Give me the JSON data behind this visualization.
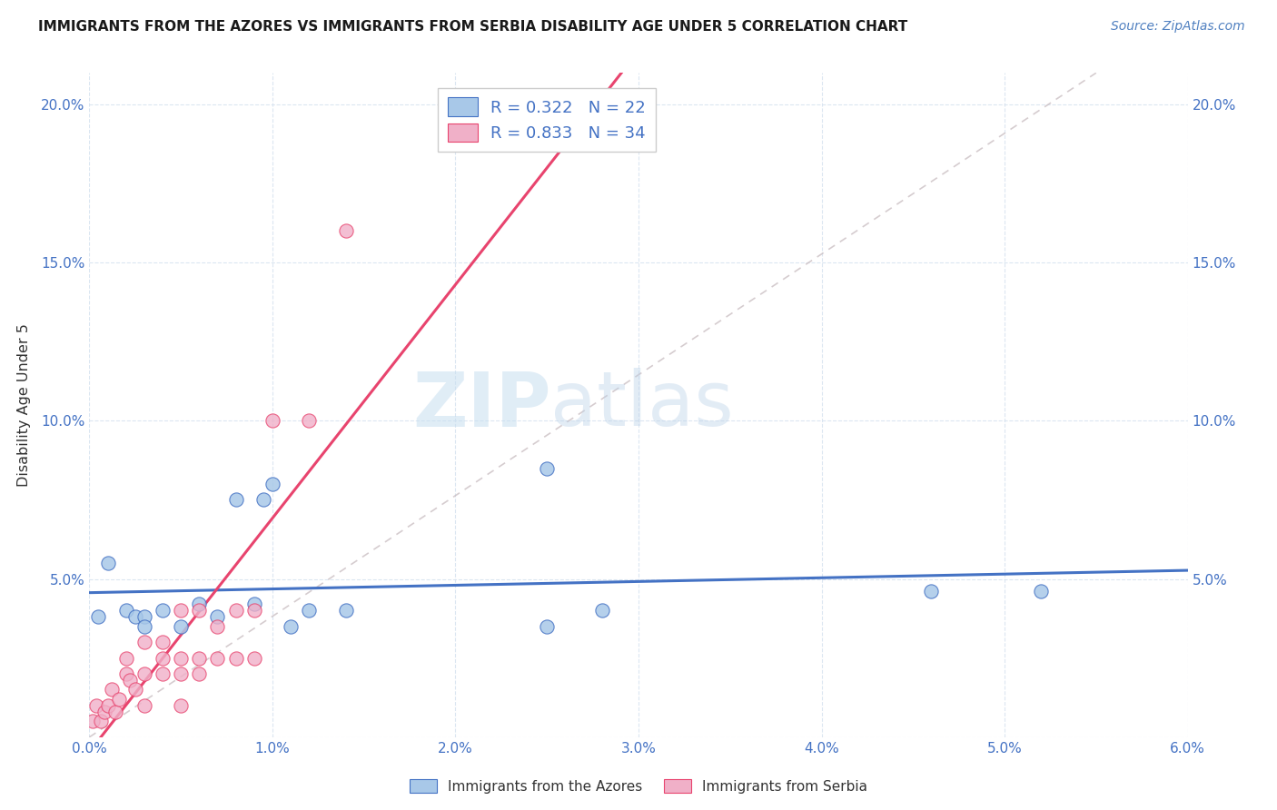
{
  "title": "IMMIGRANTS FROM THE AZORES VS IMMIGRANTS FROM SERBIA DISABILITY AGE UNDER 5 CORRELATION CHART",
  "source": "Source: ZipAtlas.com",
  "ylabel": "Disability Age Under 5",
  "xlim": [
    0.0,
    0.06
  ],
  "ylim": [
    0.0,
    0.21
  ],
  "xticks": [
    0.0,
    0.01,
    0.02,
    0.03,
    0.04,
    0.05,
    0.06
  ],
  "yticks": [
    0.0,
    0.05,
    0.1,
    0.15,
    0.2
  ],
  "ytick_labels": [
    "",
    "5.0%",
    "10.0%",
    "15.0%",
    "20.0%"
  ],
  "xtick_labels": [
    "0.0%",
    "1.0%",
    "2.0%",
    "3.0%",
    "4.0%",
    "5.0%",
    "6.0%"
  ],
  "watermark_zip": "ZIP",
  "watermark_atlas": "atlas",
  "legend_R_azores": "R = 0.322",
  "legend_N_azores": "N = 22",
  "legend_R_serbia": "R = 0.833",
  "legend_N_serbia": "N = 34",
  "color_azores": "#a8c8e8",
  "color_serbia": "#f0b0c8",
  "line_color_azores": "#4472c4",
  "line_color_serbia": "#e8446e",
  "line_color_diag": "#c8bcc0",
  "azores_x": [
    0.0005,
    0.001,
    0.002,
    0.0025,
    0.003,
    0.003,
    0.004,
    0.005,
    0.006,
    0.007,
    0.008,
    0.009,
    0.0095,
    0.01,
    0.011,
    0.012,
    0.014,
    0.025,
    0.025,
    0.028,
    0.046,
    0.052
  ],
  "azores_y": [
    0.038,
    0.055,
    0.04,
    0.038,
    0.038,
    0.035,
    0.04,
    0.035,
    0.042,
    0.038,
    0.075,
    0.042,
    0.075,
    0.08,
    0.035,
    0.04,
    0.04,
    0.085,
    0.035,
    0.04,
    0.046,
    0.046
  ],
  "serbia_x": [
    0.0002,
    0.0004,
    0.0006,
    0.0008,
    0.001,
    0.0012,
    0.0014,
    0.0016,
    0.002,
    0.002,
    0.0022,
    0.0025,
    0.003,
    0.003,
    0.003,
    0.004,
    0.004,
    0.004,
    0.005,
    0.005,
    0.005,
    0.005,
    0.006,
    0.006,
    0.006,
    0.007,
    0.007,
    0.008,
    0.008,
    0.009,
    0.009,
    0.01,
    0.012,
    0.014
  ],
  "serbia_y": [
    0.005,
    0.01,
    0.005,
    0.008,
    0.01,
    0.015,
    0.008,
    0.012,
    0.02,
    0.025,
    0.018,
    0.015,
    0.01,
    0.02,
    0.03,
    0.02,
    0.025,
    0.03,
    0.01,
    0.02,
    0.025,
    0.04,
    0.02,
    0.025,
    0.04,
    0.025,
    0.035,
    0.025,
    0.04,
    0.025,
    0.04,
    0.1,
    0.1,
    0.16
  ],
  "figsize": [
    14.06,
    8.92
  ],
  "dpi": 100
}
